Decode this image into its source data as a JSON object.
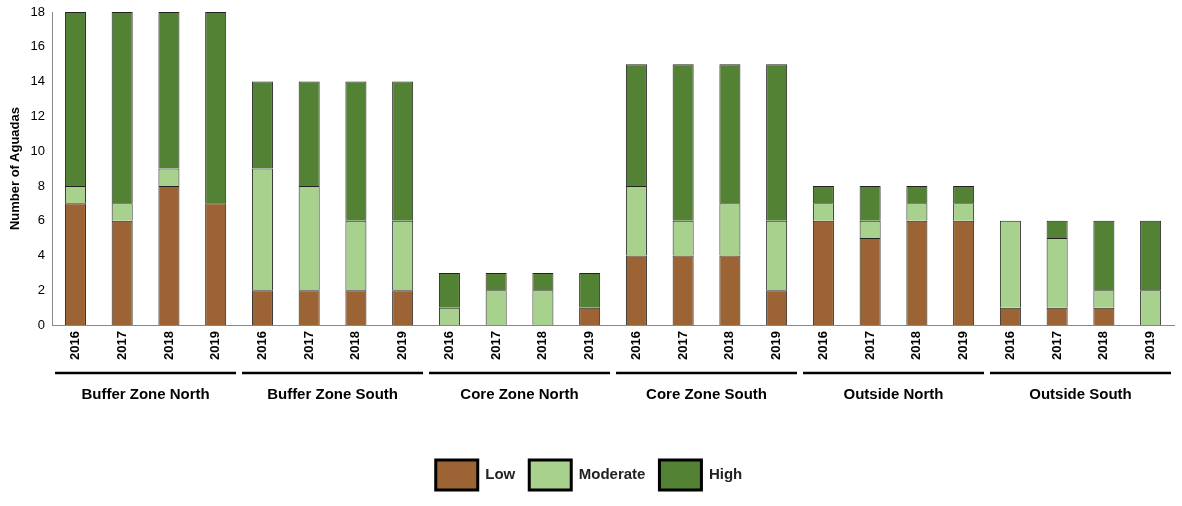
{
  "chart_data": {
    "type": "bar",
    "stacked": true,
    "ylabel": "Number of Aguadas",
    "categories": [
      "2016",
      "2017",
      "2018",
      "2019",
      "2016",
      "2017",
      "2018",
      "2019",
      "2016",
      "2017",
      "2018",
      "2019",
      "2016",
      "2017",
      "2018",
      "2019",
      "2016",
      "2017",
      "2018",
      "2019",
      "2016",
      "2017",
      "2018",
      "2019"
    ],
    "annotations": [
      "Buffer Zone North",
      "Buffer Zone South",
      "Core Zone North",
      "Core Zone South",
      "Outside North",
      "Outside South"
    ],
    "series": [
      {
        "name": "Low",
        "color": "#9c6434",
        "values": [
          7,
          6,
          8,
          7,
          2,
          2,
          2,
          2,
          0,
          0,
          0,
          1,
          4,
          4,
          4,
          2,
          6,
          5,
          6,
          6,
          1,
          1,
          1,
          0
        ]
      },
      {
        "name": "Moderate",
        "color": "#a9d18e",
        "values": [
          1,
          1,
          1,
          0,
          7,
          6,
          4,
          4,
          1,
          2,
          2,
          0,
          4,
          2,
          3,
          4,
          1,
          1,
          1,
          1,
          5,
          4,
          1,
          2
        ]
      },
      {
        "name": "High",
        "color": "#548235",
        "values": [
          10,
          11,
          9,
          11,
          5,
          6,
          8,
          8,
          2,
          1,
          1,
          2,
          7,
          9,
          8,
          9,
          1,
          2,
          1,
          1,
          0,
          1,
          4,
          4
        ]
      }
    ],
    "ylim": [
      0,
      18
    ],
    "yticks": [
      0,
      2,
      4,
      6,
      8,
      10,
      12,
      14,
      16,
      18
    ],
    "grid": false,
    "legend": "bottom"
  }
}
